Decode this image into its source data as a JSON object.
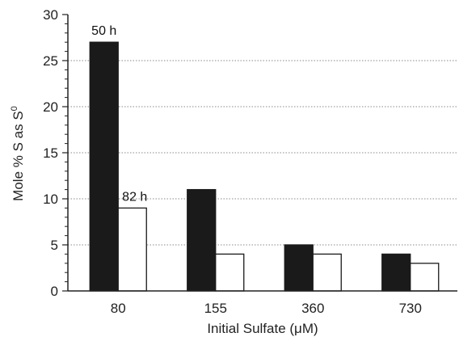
{
  "chart_data": {
    "type": "bar",
    "categories": [
      "80",
      "155",
      "360",
      "730"
    ],
    "series": [
      {
        "name": "50 h",
        "values": [
          27,
          11,
          5,
          4
        ],
        "color": "#1a1a1a"
      },
      {
        "name": "82 h",
        "values": [
          9,
          4,
          4,
          3
        ],
        "color": "#ffffff"
      }
    ],
    "xlabel": "Initial Sulfate (μM)",
    "ylabel": "Mole % S as S",
    "ylabel_superscript": "0",
    "ylim": [
      0,
      30
    ],
    "yticks": [
      "0",
      "5",
      "10",
      "15",
      "20",
      "25",
      "30"
    ],
    "grid": "horizontal dotted",
    "annotations": [
      {
        "text": "50 h",
        "category": "80",
        "series": 0
      },
      {
        "text": "82 h",
        "category": "80",
        "series": 1
      }
    ]
  }
}
